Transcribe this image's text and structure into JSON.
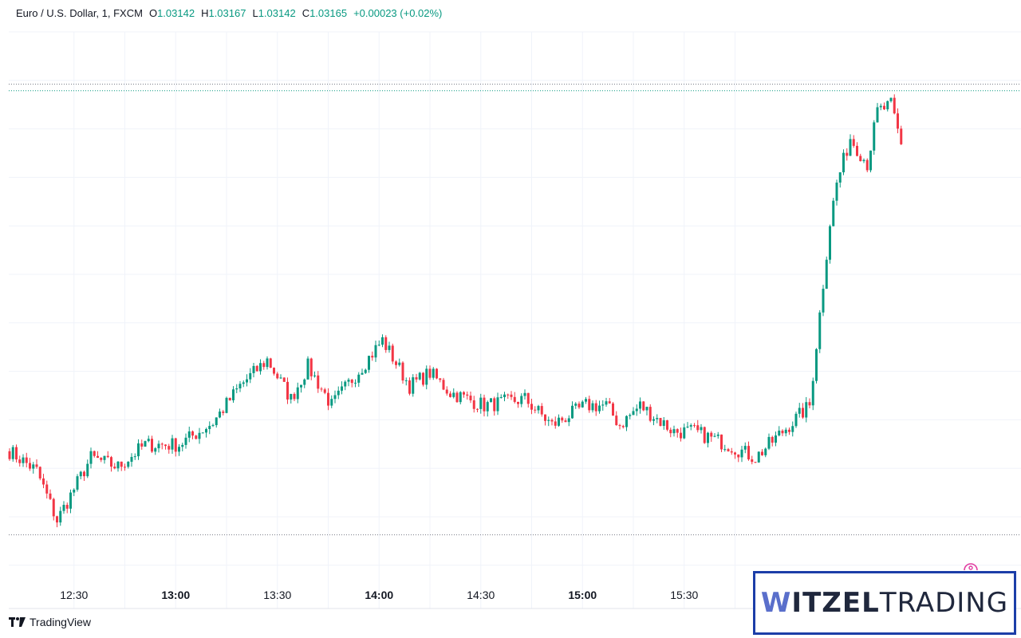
{
  "legend": {
    "symbol": "Euro / U.S. Dollar, 1, FXCM",
    "open_label": "O",
    "open": "1.03142",
    "high_label": "H",
    "high": "1.03167",
    "low_label": "L",
    "low": "1.03142",
    "close_label": "C",
    "close": "1.03165",
    "change": "+0.00023 (+0.02%)"
  },
  "brand": {
    "tradingview": "TradingView",
    "witzel_part1": "W",
    "witzel_part2": "ITZEL",
    "witzel_part3": "TRADING"
  },
  "colors": {
    "up": "#089981",
    "down": "#f23645",
    "grid": "#f0f3fa"
  },
  "chart_data": {
    "type": "candlestick",
    "title": "Euro / U.S. Dollar, 1, FXCM",
    "timeframe_minutes": 1,
    "x_start": "12:11",
    "x_end": "16:34",
    "x_ticks": [
      {
        "label": "12:30",
        "bold": false
      },
      {
        "label": "13:00",
        "bold": true
      },
      {
        "label": "13:30",
        "bold": false
      },
      {
        "label": "14:00",
        "bold": true
      },
      {
        "label": "14:30",
        "bold": false
      },
      {
        "label": "15:00",
        "bold": true
      },
      {
        "label": "15:30",
        "bold": false
      }
    ],
    "price_range": [
      1.0279,
      1.0321
    ],
    "reference_lines": [
      {
        "value": 1.0317,
        "style": "dotted",
        "color": "#787b86"
      },
      {
        "value": 1.03165,
        "style": "dotted",
        "color": "#089981"
      },
      {
        "value": 1.02825,
        "style": "dotted",
        "color": "#787b86"
      }
    ],
    "close_anchors": [
      [
        0,
        1.02889
      ],
      [
        8,
        1.02874
      ],
      [
        14,
        1.02836
      ],
      [
        24,
        1.02884
      ],
      [
        32,
        1.02877
      ],
      [
        40,
        1.02894
      ],
      [
        50,
        1.02894
      ],
      [
        60,
        1.02911
      ],
      [
        68,
        1.02939
      ],
      [
        76,
        1.02959
      ],
      [
        83,
        1.02929
      ],
      [
        88,
        1.02954
      ],
      [
        95,
        1.02924
      ],
      [
        104,
        1.02954
      ],
      [
        110,
        1.02974
      ],
      [
        118,
        1.02939
      ],
      [
        124,
        1.02949
      ],
      [
        130,
        1.02934
      ],
      [
        140,
        1.02924
      ],
      [
        152,
        1.02929
      ],
      [
        160,
        1.02909
      ],
      [
        170,
        1.02924
      ],
      [
        176,
        1.02924
      ],
      [
        180,
        1.02909
      ],
      [
        186,
        1.02924
      ],
      [
        196,
        1.02904
      ],
      [
        202,
        1.02904
      ],
      [
        212,
        1.02894
      ],
      [
        220,
        1.02884
      ],
      [
        228,
        1.02904
      ],
      [
        236,
        1.02924
      ],
      [
        242,
        1.03064
      ],
      [
        244,
        1.03094
      ],
      [
        248,
        1.03129
      ],
      [
        253,
        1.03109
      ],
      [
        256,
        1.03149
      ],
      [
        260,
        1.03154
      ],
      [
        263,
        1.03124
      ],
      [
        266,
        1.03139
      ],
      [
        268,
        1.03129
      ],
      [
        270,
        1.03139
      ],
      [
        272,
        1.03144
      ],
      [
        276,
        1.03149
      ],
      [
        281,
        1.03154
      ],
      [
        284,
        1.03144
      ],
      [
        287,
        1.03149
      ],
      [
        289,
        1.03165
      ]
    ]
  }
}
